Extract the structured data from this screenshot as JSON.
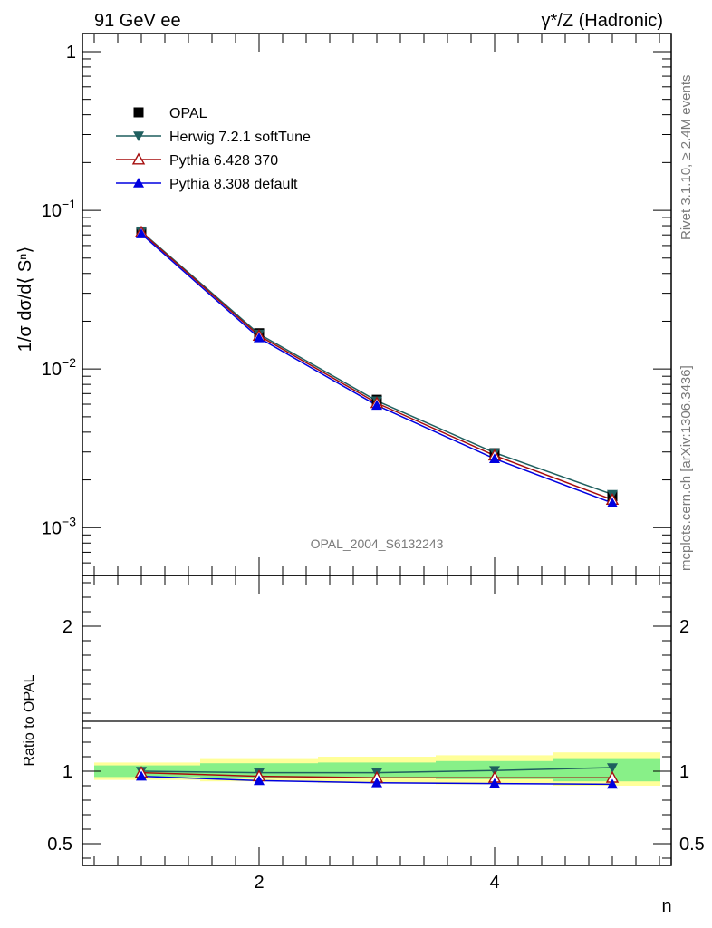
{
  "header": {
    "left": "91 GeV ee",
    "right": "γ*/Z (Hadronic)"
  },
  "side_labels": {
    "rivet": "Rivet 3.1.10, ≥ 2.4M events",
    "mcplots": "mcplots.cern.ch [arXiv:1306.3436]"
  },
  "colors": {
    "opal": "#000000",
    "herwig": "#1f5f5f",
    "pythia6": "#a50d0d",
    "pythia8": "#0000e0",
    "band_inner": "#88f088",
    "band_outer": "#ffff99"
  },
  "chart_data": [
    {
      "type": "line",
      "panel": "main",
      "ylabel": "1/σ dσ/d⟨ Sⁿ⟩",
      "y_scale": "log",
      "ylim": [
        0.0005,
        1.3
      ],
      "xlim": [
        0.5,
        5.5
      ],
      "y_ticks": [
        {
          "value": 1,
          "base": "1",
          "exp": ""
        },
        {
          "value": 0.1,
          "base": "10",
          "exp": "−1"
        },
        {
          "value": 0.01,
          "base": "10",
          "exp": "−2"
        },
        {
          "value": 0.001,
          "base": "10",
          "exp": "−3"
        }
      ],
      "annotation": "OPAL_2004_S6132243",
      "legend_position": "top-left",
      "x": [
        1,
        2,
        3,
        4,
        5
      ],
      "series": [
        {
          "name": "OPAL",
          "marker": "square",
          "values": [
            0.0735,
            0.0168,
            0.0064,
            0.00295,
            0.00158
          ]
        },
        {
          "name": "Herwig 7.2.1 softTune",
          "marker": "triangle-down",
          "values": [
            0.0735,
            0.0166,
            0.0063,
            0.00297,
            0.00162
          ]
        },
        {
          "name": "Pythia 6.428 370",
          "marker": "triangle-up-open",
          "values": [
            0.0728,
            0.0162,
            0.0061,
            0.00285,
            0.0015
          ]
        },
        {
          "name": "Pythia 8.308 default",
          "marker": "triangle-up",
          "values": [
            0.071,
            0.0157,
            0.0059,
            0.00272,
            0.00143
          ]
        }
      ]
    },
    {
      "type": "line",
      "panel": "ratio",
      "xlabel": "n",
      "ylabel": "Ratio to OPAL",
      "ylim": [
        0.35,
        2.35
      ],
      "xlim": [
        0.5,
        5.5
      ],
      "y_tick_labels": [
        "2",
        "1",
        "0.5"
      ],
      "y_tick_values": [
        2,
        1,
        0.5
      ],
      "x_tick_labels": [
        "2",
        "4"
      ],
      "x_tick_values": [
        2,
        4
      ],
      "x": [
        1,
        2,
        3,
        4,
        5
      ],
      "bands": [
        {
          "kind": "outer",
          "bins": [
            [
              0.5,
              1.5,
              0.94,
              1.06
            ],
            [
              1.5,
              2.5,
              0.93,
              1.09
            ],
            [
              2.5,
              3.5,
              0.92,
              1.1
            ],
            [
              3.5,
              4.5,
              0.91,
              1.11
            ],
            [
              4.5,
              5.5,
              0.9,
              1.13
            ]
          ]
        },
        {
          "kind": "inner",
          "bins": [
            [
              0.5,
              1.5,
              0.96,
              1.04
            ],
            [
              1.5,
              2.5,
              0.955,
              1.055
            ],
            [
              2.5,
              3.5,
              0.95,
              1.06
            ],
            [
              3.5,
              4.5,
              0.945,
              1.07
            ],
            [
              4.5,
              5.5,
              0.93,
              1.09
            ]
          ]
        }
      ],
      "series": [
        {
          "name": "Herwig 7.2.1 softTune",
          "marker": "triangle-down",
          "values": [
            1.0,
            0.99,
            0.99,
            1.005,
            1.025
          ]
        },
        {
          "name": "Pythia 6.428 370",
          "marker": "triangle-up-open",
          "values": [
            0.99,
            0.965,
            0.955,
            0.955,
            0.955
          ]
        },
        {
          "name": "Pythia 8.308 default",
          "marker": "triangle-up",
          "values": [
            0.965,
            0.935,
            0.92,
            0.915,
            0.91
          ]
        }
      ]
    }
  ]
}
